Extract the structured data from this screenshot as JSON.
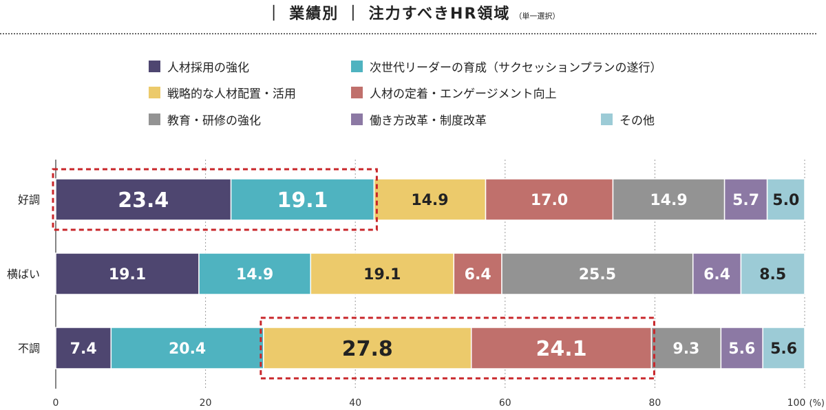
{
  "header": {
    "title": "｜ 業績別 ｜ 注力すべきHR領域",
    "note": "（単一選択）"
  },
  "colors": {
    "c1": "#4e4670",
    "c2": "#4fb3c0",
    "c3": "#ecca6b",
    "c4": "#c0706c",
    "c5": "#939393",
    "c6": "#8c79a4",
    "c7": "#9ccbd6",
    "highlight": "#c8262a"
  },
  "chart_data": {
    "type": "bar",
    "orientation": "horizontal",
    "stacked": true,
    "categories": [
      "好調",
      "横ばい",
      "不調"
    ],
    "series": [
      {
        "name": "人材採用の強化",
        "values": [
          23.4,
          19.1,
          7.4
        ]
      },
      {
        "name": "次世代リーダーの育成（サクセッションプランの遂行）",
        "values": [
          19.1,
          14.9,
          20.4
        ]
      },
      {
        "name": "戦略的な人材配置・活用",
        "values": [
          14.9,
          19.1,
          27.8
        ]
      },
      {
        "name": "人材の定着・エンゲージメント向上",
        "values": [
          17.0,
          6.4,
          24.1
        ]
      },
      {
        "name": "教育・研修の強化",
        "values": [
          14.9,
          25.5,
          9.3
        ]
      },
      {
        "name": "働き方改革・制度改革",
        "values": [
          5.7,
          6.4,
          5.6
        ]
      },
      {
        "name": "その他",
        "values": [
          5.0,
          8.5,
          5.6
        ]
      }
    ],
    "xlim": [
      0,
      100
    ],
    "xticks": [
      "0",
      "20",
      "40",
      "60",
      "80",
      "100"
    ],
    "x_unit": "(%)",
    "grid": true,
    "legend_position": "top",
    "highlights": [
      {
        "category": "好調",
        "series": [
          "人材採用の強化",
          "次世代リーダーの育成（サクセッションプランの遂行）"
        ]
      },
      {
        "category": "不調",
        "series": [
          "戦略的な人材配置・活用",
          "人材の定着・エンゲージメント向上"
        ]
      }
    ]
  }
}
